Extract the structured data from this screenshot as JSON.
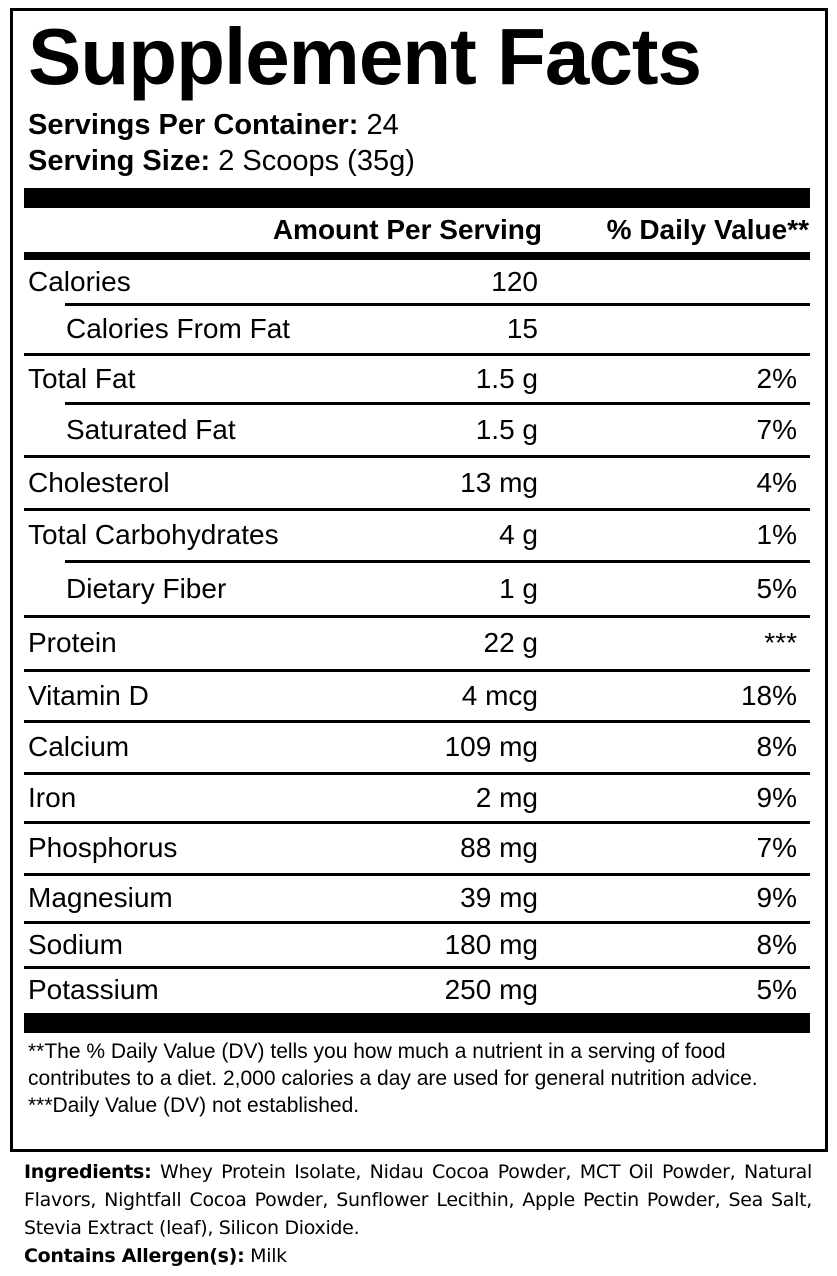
{
  "title": "Supplement Facts",
  "servings_per_container": {
    "label": "Servings Per Container:",
    "value": "24"
  },
  "serving_size": {
    "label": "Serving Size:",
    "value": "2 Scoops (35g)"
  },
  "columns": {
    "amount": "Amount Per Serving",
    "daily_value": "% Daily Value**"
  },
  "rows": [
    {
      "name": "Calories",
      "amount": "120",
      "dv": "",
      "indent": false
    },
    {
      "name": "Calories From Fat",
      "amount": "15",
      "dv": "",
      "indent": true
    },
    {
      "name": "Total Fat",
      "amount": "1.5 g",
      "dv": "2%",
      "indent": false
    },
    {
      "name": "Saturated Fat",
      "amount": "1.5 g",
      "dv": "7%",
      "indent": true
    },
    {
      "name": "Cholesterol",
      "amount": "13 mg",
      "dv": "4%",
      "indent": false
    },
    {
      "name": "Total Carbohydrates",
      "amount": "4 g",
      "dv": "1%",
      "indent": false
    },
    {
      "name": "Dietary Fiber",
      "amount": "1 g",
      "dv": "5%",
      "indent": true
    },
    {
      "name": "Protein",
      "amount": "22 g",
      "dv": "***",
      "indent": false
    },
    {
      "name": "Vitamin D",
      "amount": "4 mcg",
      "dv": "18%",
      "indent": false
    },
    {
      "name": "Calcium",
      "amount": "109 mg",
      "dv": "8%",
      "indent": false
    },
    {
      "name": "Iron",
      "amount": "2 mg",
      "dv": "9%",
      "indent": false
    },
    {
      "name": "Phosphorus",
      "amount": "88 mg",
      "dv": "7%",
      "indent": false
    },
    {
      "name": "Magnesium",
      "amount": "39 mg",
      "dv": "9%",
      "indent": false
    },
    {
      "name": "Sodium",
      "amount": "180 mg",
      "dv": "8%",
      "indent": false
    },
    {
      "name": "Potassium",
      "amount": "250 mg",
      "dv": "5%",
      "indent": false
    }
  ],
  "footnotes": [
    "**The % Daily Value (DV) tells you how much a nutrient in a serving of food contributes to a diet. 2,000 calories a day are used for general nutrition advice.",
    "***Daily Value (DV) not established."
  ],
  "ingredients": {
    "label": "Ingredients:",
    "text": "Whey Protein Isolate, Nidau Cocoa Powder, MCT Oil Powder, Natural Flavors, Nightfall Cocoa Powder, Sunflower Lecithin, Apple Pectin Powder, Sea Salt, Stevia Extract (leaf), Silicon Dioxide."
  },
  "allergens": {
    "label": "Contains Allergen(s):",
    "text": "Milk"
  }
}
